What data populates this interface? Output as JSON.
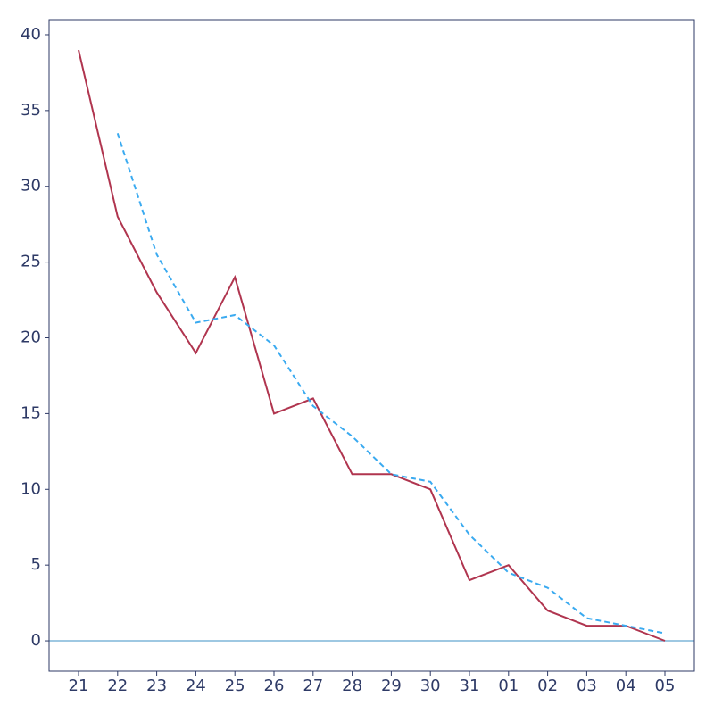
{
  "chart_data": {
    "type": "line",
    "categories": [
      "21",
      "22",
      "23",
      "24",
      "25",
      "26",
      "27",
      "28",
      "29",
      "30",
      "31",
      "01",
      "02",
      "03",
      "04",
      "05"
    ],
    "series": [
      {
        "values": [
          39,
          28,
          23,
          19,
          24,
          15,
          16,
          11,
          11,
          10,
          4,
          5,
          2,
          1,
          1,
          0
        ],
        "color": "#b0354f",
        "style": "solid"
      },
      {
        "values": [
          null,
          33.5,
          25.5,
          21,
          21.5,
          19.5,
          15.5,
          13.5,
          11,
          10.5,
          7,
          4.5,
          3.5,
          1.5,
          1,
          0.5
        ],
        "color": "#3aaaf0",
        "style": "dashed"
      }
    ],
    "ylim": [
      -2,
      41
    ],
    "yticks": [
      0,
      5,
      10,
      15,
      20,
      25,
      30,
      35,
      40
    ],
    "reference_line": {
      "y": 0,
      "color": "#7fb6d9"
    },
    "grid": false,
    "colors": {
      "axis": "#2e3a66",
      "tick_text": "#2e3a66",
      "background": "#ffffff"
    }
  }
}
